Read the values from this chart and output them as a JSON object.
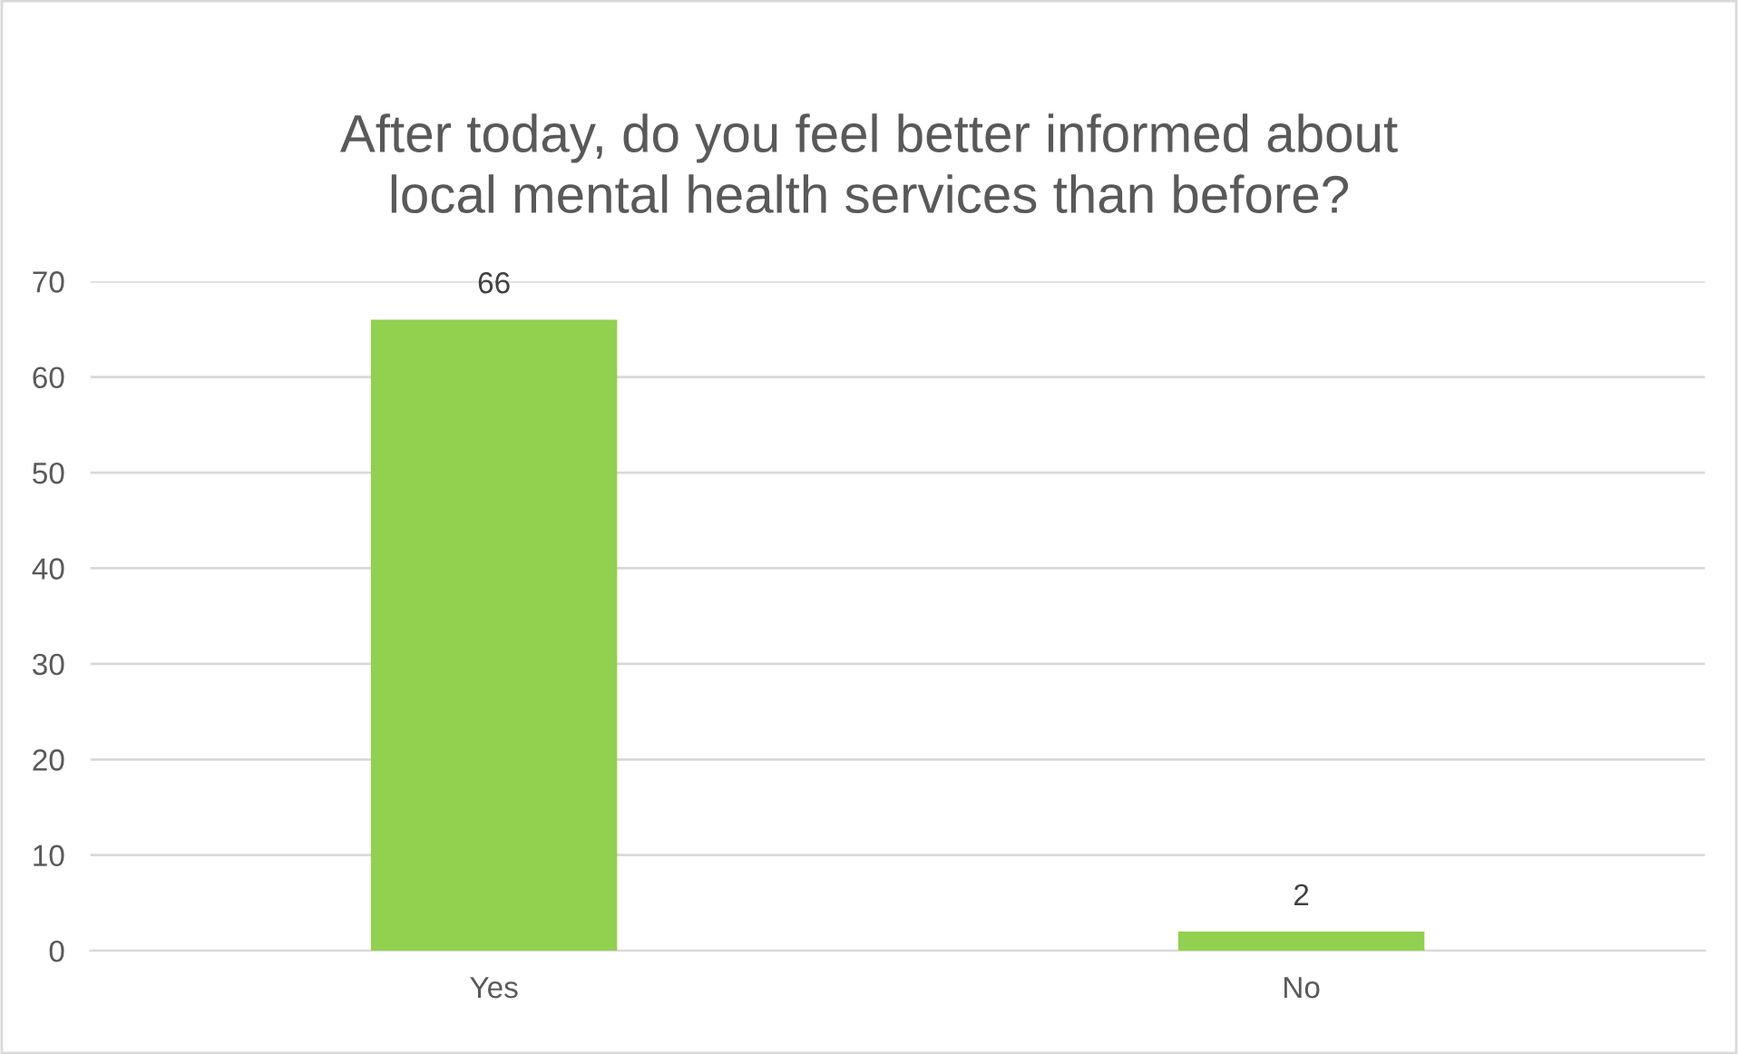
{
  "chart_data": {
    "type": "bar",
    "title": "After today, do you feel better informed about\nlocal mental health services than before?",
    "categories": [
      "Yes",
      "No"
    ],
    "values": [
      66,
      2
    ],
    "color": "#92d050",
    "ylim": [
      0,
      70
    ],
    "yticks": [
      0,
      10,
      20,
      30,
      40,
      50,
      60,
      70
    ],
    "grid": "y",
    "data_labels": true
  }
}
